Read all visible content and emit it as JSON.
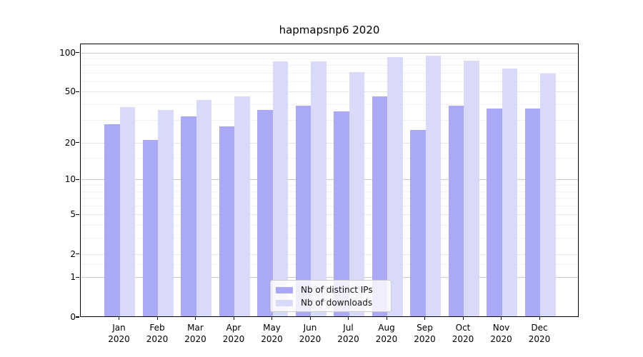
{
  "title": "hapmapsnp6 2020",
  "chart_data": {
    "type": "bar",
    "title": "hapmapsnp6 2020",
    "categories": [
      "Jan 2020",
      "Feb 2020",
      "Mar 2020",
      "Apr 2020",
      "May 2020",
      "Jun 2020",
      "Jul 2020",
      "Aug 2020",
      "Sep 2020",
      "Oct 2020",
      "Nov 2020",
      "Dec 2020"
    ],
    "series": [
      {
        "name": "Nb of distinct IPs",
        "color": "#a9a9f6",
        "values": [
          28,
          21,
          32,
          27,
          36,
          39,
          35,
          46,
          25,
          39,
          37,
          37
        ]
      },
      {
        "name": "Nb of downloads",
        "color": "#d9d9f9",
        "values": [
          38,
          36,
          43,
          46,
          85,
          85,
          71,
          92,
          95,
          86,
          75,
          69
        ]
      }
    ],
    "xlabel": "",
    "ylabel": "",
    "yscale": "log1p",
    "y_ticks": [
      100,
      50,
      20,
      10,
      5,
      2,
      1,
      0
    ],
    "ylim": [
      0,
      117
    ],
    "grid": true,
    "legend_position": "lower center"
  }
}
